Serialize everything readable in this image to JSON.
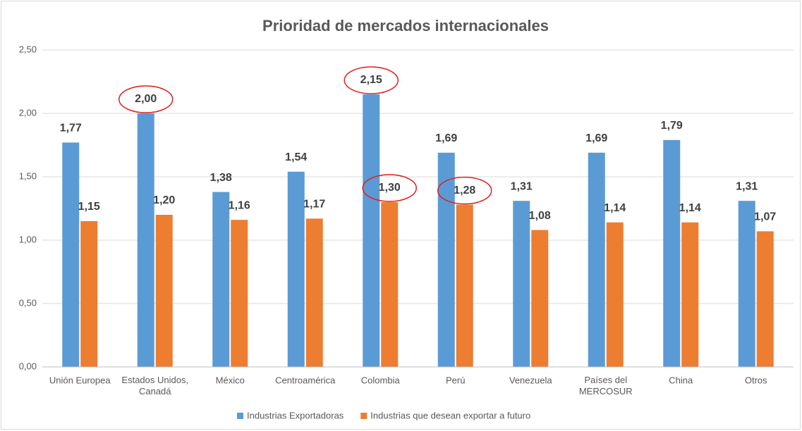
{
  "chart_data": {
    "type": "bar",
    "title": "Prioridad de mercados internacionales",
    "categories": [
      "Unión Europea",
      "Estados Unidos, Canadá",
      "México",
      "Centroamérica",
      "Colombia",
      "Perú",
      "Venezuela",
      "Países del MERCOSUR",
      "China",
      "Otros"
    ],
    "series": [
      {
        "name": "Industrias Exportadoras",
        "color": "#5b9bd5",
        "values": [
          1.77,
          2.0,
          1.38,
          1.54,
          2.15,
          1.69,
          1.31,
          1.69,
          1.79,
          1.31
        ],
        "value_labels": [
          "1,77",
          "2,00",
          "1,38",
          "1,54",
          "2,15",
          "1,69",
          "1,31",
          "1,69",
          "1,79",
          "1,31"
        ]
      },
      {
        "name": "Industrias que desean exportar a futuro",
        "color": "#ed7d31",
        "values": [
          1.15,
          1.2,
          1.16,
          1.17,
          1.3,
          1.28,
          1.08,
          1.14,
          1.14,
          1.07
        ],
        "value_labels": [
          "1,15",
          "1,20",
          "1,16",
          "1,17",
          "1,30",
          "1,28",
          "1,08",
          "1,14",
          "1,14",
          "1,07"
        ]
      }
    ],
    "ylim": [
      0,
      2.5
    ],
    "yticks": [
      {
        "value": 0,
        "label": "0,00"
      },
      {
        "value": 0.5,
        "label": "0,50"
      },
      {
        "value": 1,
        "label": "1,00"
      },
      {
        "value": 1.5,
        "label": "1,50"
      },
      {
        "value": 2,
        "label": "2,00"
      },
      {
        "value": 2.5,
        "label": "2,50"
      }
    ],
    "grid": true,
    "legend": "bottom"
  }
}
